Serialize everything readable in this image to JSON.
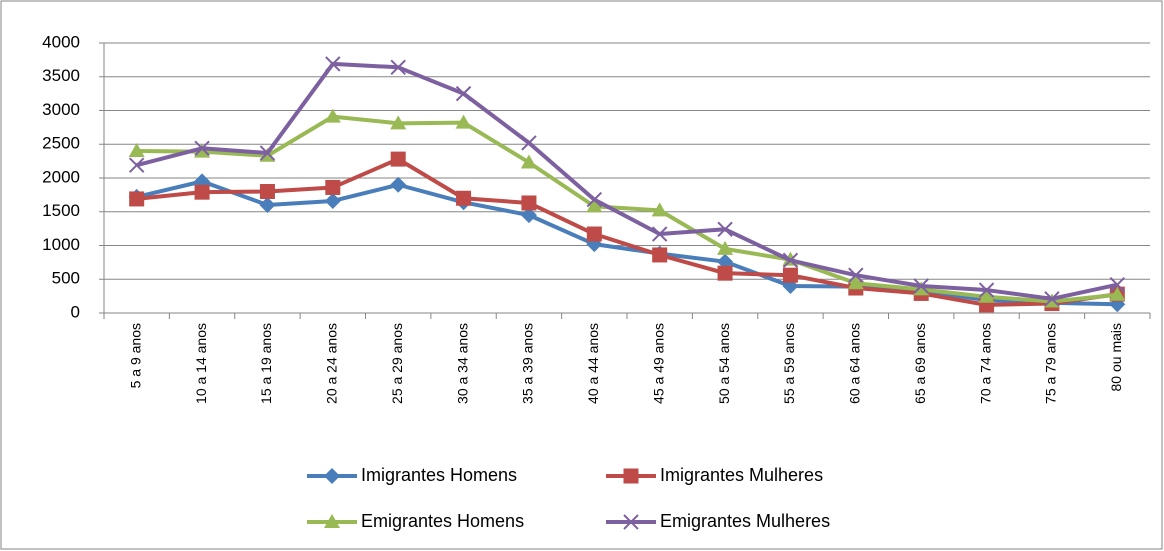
{
  "chart_data": {
    "type": "line",
    "categories": [
      "5 a 9 anos",
      "10 a 14 anos",
      "15 a 19 anos",
      "20 a 24 anos",
      "25 a 29 anos",
      "30 a 34 anos",
      "35 a 39 anos",
      "40 a 44 anos",
      "45 a 49 anos",
      "50 a 54 anos",
      "55 a 59 anos",
      "60 a 64 anos",
      "65 a 69 anos",
      "70 a 74 anos",
      "75 a 79 anos",
      "80 ou mais"
    ],
    "series": [
      {
        "name": "Imigrantes Homens",
        "color": "#4a7ebb",
        "marker": "diamond",
        "values": [
          1720,
          1950,
          1600,
          1660,
          1900,
          1640,
          1450,
          1020,
          880,
          760,
          400,
          390,
          330,
          190,
          150,
          130
        ]
      },
      {
        "name": "Imigrantes Mulheres",
        "color": "#be4b48",
        "marker": "square",
        "values": [
          1690,
          1790,
          1800,
          1860,
          2280,
          1700,
          1630,
          1170,
          860,
          590,
          560,
          370,
          290,
          120,
          140,
          280
        ]
      },
      {
        "name": "Emigrantes Homens",
        "color": "#98b954",
        "marker": "triangle",
        "values": [
          2400,
          2390,
          2330,
          2910,
          2810,
          2820,
          2230,
          1580,
          1520,
          950,
          790,
          440,
          350,
          240,
          170,
          270
        ]
      },
      {
        "name": "Emigrantes Mulheres",
        "color": "#7d60a0",
        "marker": "x",
        "values": [
          2190,
          2440,
          2370,
          3690,
          3640,
          3250,
          2520,
          1680,
          1170,
          1240,
          780,
          560,
          400,
          340,
          210,
          420
        ]
      }
    ],
    "ylim": [
      0,
      4000
    ],
    "yticks": [
      0,
      500,
      1000,
      1500,
      2000,
      2500,
      3000,
      3500,
      4000
    ],
    "grid": true
  }
}
